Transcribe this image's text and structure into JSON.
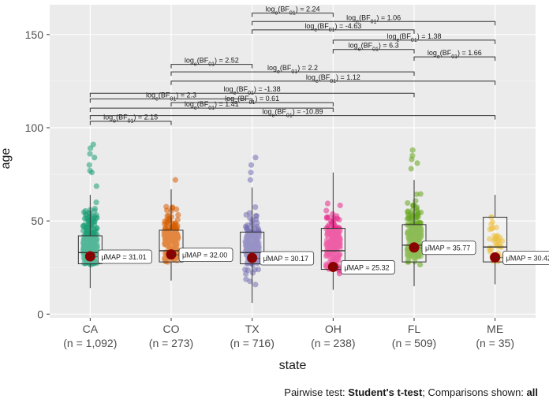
{
  "chart_data": {
    "type": "box-violin-scatter",
    "xlabel": "state",
    "ylabel": "age",
    "ylim": [
      -2,
      166
    ],
    "yticks": [
      0,
      50,
      100,
      150
    ],
    "groups": [
      {
        "name": "CA",
        "n_label": "(n = 1,092)",
        "color": "#1b9e77",
        "min": 14,
        "q1": 27,
        "median": 33,
        "q3": 42,
        "max": 64,
        "outliers": [
          76,
          77,
          80,
          84,
          86,
          89,
          91
        ],
        "mean": 31.01,
        "mean_label": "31.01",
        "points_min": 14,
        "points_max": 80
      },
      {
        "name": "CO",
        "n_label": "(n = 273)",
        "color": "#d95f02",
        "min": 18,
        "q1": 28,
        "median": 34,
        "q3": 45,
        "max": 67,
        "outliers": [
          72
        ],
        "mean": 32.0,
        "mean_label": "32.00",
        "points_min": 18,
        "points_max": 70
      },
      {
        "name": "TX",
        "n_label": "(n = 716)",
        "color": "#7570b3",
        "min": 6,
        "q1": 27,
        "median": 33,
        "q3": 44,
        "max": 68,
        "outliers": [
          72,
          76,
          80,
          84
        ],
        "mean": 30.17,
        "mean_label": "30.17",
        "points_min": 6,
        "points_max": 75
      },
      {
        "name": "OH",
        "n_label": "(n = 238)",
        "color": "#e7298a",
        "min": 13,
        "q1": 24,
        "median": 34,
        "q3": 46,
        "max": 76,
        "outliers": [],
        "mean": 25.32,
        "mean_label": "25.32",
        "points_min": 13,
        "points_max": 76
      },
      {
        "name": "FL",
        "n_label": "(n = 509)",
        "color": "#66a61e",
        "min": 15,
        "q1": 28,
        "median": 37,
        "q3": 48,
        "max": 72,
        "outliers": [
          78,
          81,
          83,
          85,
          88
        ],
        "mean": 35.77,
        "mean_label": "35.77",
        "points_min": 15,
        "points_max": 75
      },
      {
        "name": "ME",
        "n_label": "(n = 35)",
        "color": "#e6ab02",
        "min": 16,
        "q1": 28,
        "median": 36,
        "q3": 52,
        "max": 64,
        "outliers": [],
        "mean": 30.42,
        "mean_label": "30.42",
        "points_min": 16,
        "points_max": 62
      }
    ],
    "map_label_prefix": "μ̂MAP = ",
    "comparisons": [
      {
        "from": "CA",
        "to": "CO",
        "y": 103.5,
        "label": "loge(BF01) = 2.15"
      },
      {
        "from": "CA",
        "to": "TX",
        "y": 115.5,
        "label": "loge(BF01) = 2.3"
      },
      {
        "from": "CA",
        "to": "OH",
        "y": 110.5,
        "label": "loge(BF01) = 1.41"
      },
      {
        "from": "CA",
        "to": "FL",
        "y": 118.5,
        "label": "loge(BF01) = -1.38"
      },
      {
        "from": "CA",
        "to": "ME",
        "y": 106.5,
        "label": "loge(BF01) = -10.89"
      },
      {
        "from": "CO",
        "to": "TX",
        "y": 134,
        "label": "loge(BF01) = 2.52"
      },
      {
        "from": "CO",
        "to": "OH",
        "y": 113.5,
        "label": "loge(BF01) = 0.61"
      },
      {
        "from": "CO",
        "to": "FL",
        "y": 130,
        "label": "loge(BF01) = 2.2"
      },
      {
        "from": "CO",
        "to": "ME",
        "y": 125,
        "label": "loge(BF01) = 1.12"
      },
      {
        "from": "TX",
        "to": "OH",
        "y": 161.5,
        "label": "loge(BF01) = 2.24"
      },
      {
        "from": "TX",
        "to": "FL",
        "y": 152.5,
        "label": "loge(BF01) = -4.63"
      },
      {
        "from": "TX",
        "to": "ME",
        "y": 157,
        "label": "loge(BF01) = 1.06"
      },
      {
        "from": "OH",
        "to": "FL",
        "y": 142,
        "label": "loge(BF01) = 6.3"
      },
      {
        "from": "OH",
        "to": "ME",
        "y": 147,
        "label": "loge(BF01) = 1.38"
      },
      {
        "from": "FL",
        "to": "ME",
        "y": 138,
        "label": "loge(BF01) = 1.66"
      }
    ],
    "grid": true,
    "legend": "none"
  },
  "caption": {
    "prefix": "Pairwise test: ",
    "test": "Student's t-test",
    "middle": "; Comparisons shown: ",
    "shown": "all"
  }
}
